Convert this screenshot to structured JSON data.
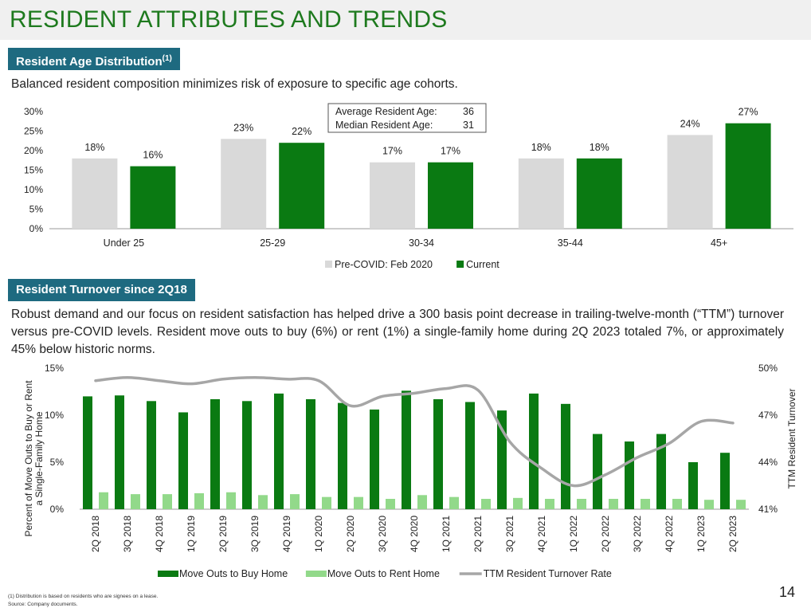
{
  "header": {
    "title": "RESIDENT ATTRIBUTES AND TRENDS"
  },
  "sections": {
    "age": {
      "title": "Resident Age Distribution",
      "title_sup": "(1)",
      "description": "Balanced resident composition minimizes risk of exposure to specific age cohorts."
    },
    "turnover": {
      "title": "Resident Turnover since 2Q18",
      "description": "Robust demand and our focus on resident satisfaction has helped drive a 300 basis point decrease in trailing-twelve-month (“TTM”) turnover versus pre-COVID levels. Resident move outs to buy (6%) or rent (1%) a single-family home during 2Q 2023 totaled 7%, or approximately 45% below historic norms."
    }
  },
  "info_box": {
    "rows": [
      {
        "label": "Average Resident Age:",
        "value": "36"
      },
      {
        "label": "Median Resident Age:",
        "value": "31"
      }
    ]
  },
  "chart_data": [
    {
      "type": "bar",
      "categories": [
        "Under 25",
        "25-29",
        "30-34",
        "35-44",
        "45+"
      ],
      "series": [
        {
          "name": "Pre-COVID: Feb 2020",
          "values": [
            18,
            23,
            17,
            18,
            24
          ],
          "labels": [
            "18%",
            "23%",
            "17%",
            "18%",
            "24%"
          ],
          "color": "#d9d9d9"
        },
        {
          "name": "Current",
          "values": [
            16,
            22,
            17,
            18,
            27
          ],
          "labels": [
            "16%",
            "22%",
            "17%",
            "18%",
            "27%"
          ],
          "color": "#0a7a12"
        }
      ],
      "yticks": [
        "0%",
        "5%",
        "10%",
        "15%",
        "20%",
        "25%",
        "30%"
      ],
      "ylim": [
        0,
        30
      ],
      "legend": "bottom"
    },
    {
      "type": "bar",
      "categories": [
        "2Q 2018",
        "3Q 2018",
        "4Q 2018",
        "1Q 2019",
        "2Q 2019",
        "3Q 2019",
        "4Q 2019",
        "1Q 2020",
        "2Q 2020",
        "3Q 2020",
        "4Q 2020",
        "1Q 2021",
        "2Q 2021",
        "3Q 2021",
        "4Q 2021",
        "1Q 2022",
        "2Q 2022",
        "3Q 2022",
        "4Q 2022",
        "1Q 2023",
        "2Q 2023"
      ],
      "series": [
        {
          "name": "Move Outs to Buy Home",
          "type": "bar",
          "axis": "left",
          "color": "#0a7a12",
          "values": [
            12.0,
            12.1,
            11.5,
            10.3,
            11.7,
            11.5,
            12.3,
            11.7,
            11.3,
            10.6,
            12.6,
            11.7,
            11.4,
            10.5,
            12.3,
            11.2,
            8.0,
            7.2,
            8.0,
            5.0,
            6.0
          ]
        },
        {
          "name": "Move Outs to Rent Home",
          "type": "bar",
          "axis": "left",
          "color": "#92d98a",
          "values": [
            1.8,
            1.6,
            1.6,
            1.7,
            1.8,
            1.5,
            1.6,
            1.3,
            1.3,
            1.1,
            1.5,
            1.3,
            1.1,
            1.2,
            1.1,
            1.1,
            1.1,
            1.1,
            1.1,
            1.0,
            1.0
          ]
        },
        {
          "name": "TTM Resident Turnover Rate",
          "type": "line",
          "axis": "right",
          "color": "#a6a6a6",
          "values": [
            49.2,
            49.4,
            49.2,
            49.0,
            49.3,
            49.4,
            49.3,
            49.2,
            47.6,
            48.2,
            48.4,
            48.7,
            48.6,
            45.3,
            43.6,
            42.5,
            43.2,
            44.3,
            45.2,
            46.6,
            46.5
          ]
        }
      ],
      "y_left": {
        "label": "Percent of Move Outs to Buy or Rent a Single-Family Home",
        "ticks": [
          "0%",
          "5%",
          "10%",
          "15%"
        ],
        "lim": [
          0,
          15
        ]
      },
      "y_right": {
        "label": "TTM Resident Turnover",
        "ticks": [
          "41%",
          "44%",
          "47%",
          "50%"
        ],
        "lim": [
          41,
          50
        ]
      },
      "legend": "bottom"
    }
  ],
  "page_number": "14",
  "footnotes": [
    "(1)    Distribution is based on residents who are signees on a lease.",
    "Source:  Company documents."
  ]
}
